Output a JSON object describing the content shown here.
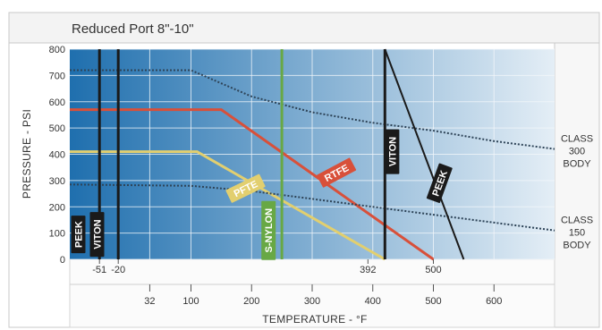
{
  "chart_data": {
    "type": "line",
    "title": "Reduced Port 8\"-10\"",
    "xlabel": "TEMPERATURE - °F",
    "ylabel": "PRESSURE - PSI",
    "xlim": [
      -100,
      700
    ],
    "ylim": [
      0,
      800
    ],
    "x_ticks_bottom": [
      32,
      100,
      200,
      300,
      400,
      500,
      600
    ],
    "x_ticks_top": [
      -51,
      -20,
      392,
      500
    ],
    "y_ticks": [
      0,
      100,
      200,
      300,
      400,
      500,
      600,
      700,
      800
    ],
    "colors": {
      "background_left": "#1f6fae",
      "background_right": "#e4eef6",
      "grid": "#f4f8fb",
      "rtfe": "#d8503a",
      "pfte": "#e2cf6f",
      "nylon": "#68a845",
      "class_line": "#2e4458",
      "label_box": "#1a1a1a",
      "frame": "#c9c9c9"
    },
    "series": [
      {
        "name": "RTFE",
        "color": "#d8503a",
        "x": [
          -100,
          150,
          500
        ],
        "y": [
          570,
          570,
          0
        ]
      },
      {
        "name": "PFTE",
        "color": "#e2cf6f",
        "x": [
          -100,
          110,
          420
        ],
        "y": [
          410,
          410,
          0
        ]
      },
      {
        "name": "CLASS 300 BODY",
        "color": "#2e4458",
        "style": "dotted",
        "x": [
          -100,
          100,
          200,
          300,
          400,
          500,
          600,
          700
        ],
        "y": [
          720,
          720,
          620,
          560,
          520,
          490,
          450,
          420
        ]
      },
      {
        "name": "CLASS 150 BODY",
        "color": "#2e4458",
        "style": "dotted",
        "x": [
          -100,
          100,
          200,
          300,
          400,
          500,
          600,
          700
        ],
        "y": [
          285,
          280,
          260,
          230,
          200,
          170,
          140,
          110
        ]
      }
    ],
    "vertical_limits": [
      {
        "label": "PEEK",
        "x": -51,
        "color": "#1a1a1a"
      },
      {
        "label": "VITON",
        "x": -20,
        "color": "#1a1a1a"
      },
      {
        "label": "S-NYLON",
        "x": 250,
        "color": "#68a845"
      },
      {
        "label": "VITON",
        "x": 420,
        "color": "#1a1a1a"
      }
    ],
    "peek_line": {
      "label": "PEEK",
      "x": [
        420,
        550
      ],
      "y": [
        800,
        0
      ],
      "color": "#1a1a1a"
    },
    "line_labels": [
      {
        "text": "PFTE",
        "x": 190,
        "y": 270,
        "color": "#e2cf6f",
        "angle": -26
      },
      {
        "text": "RTFE",
        "x": 340,
        "y": 330,
        "color": "#d8503a",
        "angle": -28
      },
      {
        "text": "VITON",
        "x": 432,
        "y": 410,
        "color": "#1a1a1a",
        "angle": -90
      },
      {
        "text": "PEEK",
        "x": 510,
        "y": 290,
        "color": "#1a1a1a",
        "angle": -70
      },
      {
        "text": "PEEK",
        "x": -86,
        "y": 95,
        "color": "#1a1a1a",
        "angle": -90
      },
      {
        "text": "VITON",
        "x": -55,
        "y": 95,
        "color": "#1a1a1a",
        "angle": -90
      },
      {
        "text": "S-NYLON",
        "x": 228,
        "y": 110,
        "color": "#68a845",
        "angle": -90
      }
    ],
    "class_labels": [
      {
        "lines": [
          "CLASS",
          "300",
          "BODY"
        ]
      },
      {
        "lines": [
          "CLASS",
          "150",
          "BODY"
        ]
      }
    ]
  }
}
